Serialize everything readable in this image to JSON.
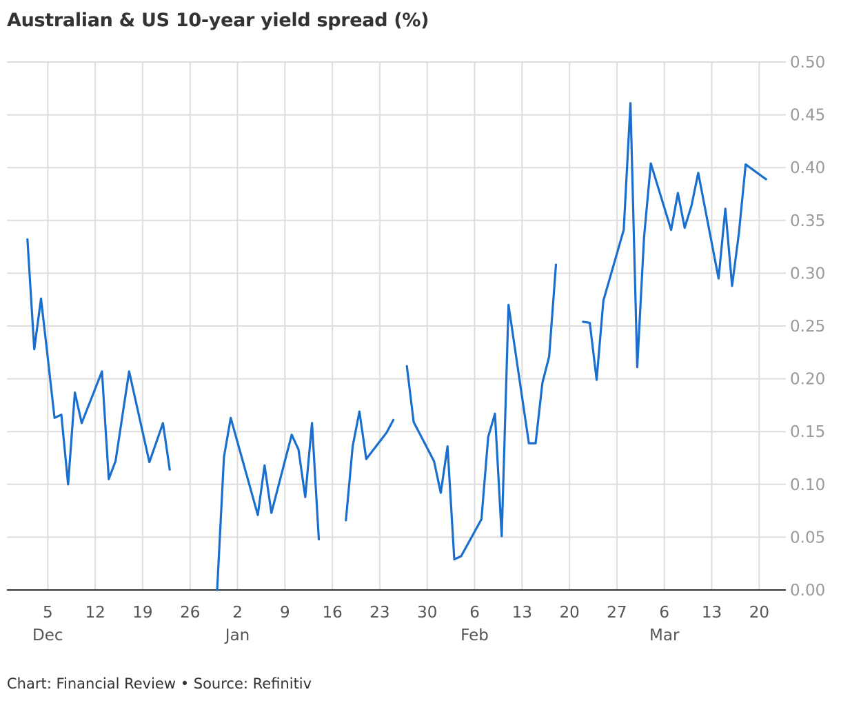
{
  "title": "Australian & US 10-year yield spread (%)",
  "footer": "Chart: Financial Review • Source: Refinitiv",
  "colors": {
    "line": "#1a6fce",
    "grid": "#dddddd",
    "axis": "#333333",
    "background": "#ffffff"
  },
  "chart_data": {
    "type": "line",
    "title": "Australian & US 10-year yield spread (%)",
    "xlabel": "",
    "ylabel": "",
    "ylim": [
      0,
      0.5
    ],
    "y_ticks": [
      "0.00",
      "0.05",
      "0.10",
      "0.15",
      "0.20",
      "0.25",
      "0.30",
      "0.35",
      "0.40",
      "0.45",
      "0.50"
    ],
    "x_range": [
      "2022-12-01",
      "2023-03-22"
    ],
    "x_ticks": [
      {
        "date": "2022-12-05",
        "label": "5",
        "month": "Dec"
      },
      {
        "date": "2022-12-12",
        "label": "12",
        "month": ""
      },
      {
        "date": "2022-12-19",
        "label": "19",
        "month": ""
      },
      {
        "date": "2022-12-26",
        "label": "26",
        "month": ""
      },
      {
        "date": "2023-01-02",
        "label": "2",
        "month": "Jan"
      },
      {
        "date": "2023-01-09",
        "label": "9",
        "month": ""
      },
      {
        "date": "2023-01-16",
        "label": "16",
        "month": ""
      },
      {
        "date": "2023-01-23",
        "label": "23",
        "month": ""
      },
      {
        "date": "2023-01-30",
        "label": "30",
        "month": ""
      },
      {
        "date": "2023-02-06",
        "label": "6",
        "month": "Feb"
      },
      {
        "date": "2023-02-13",
        "label": "13",
        "month": ""
      },
      {
        "date": "2023-02-20",
        "label": "20",
        "month": ""
      },
      {
        "date": "2023-02-27",
        "label": "27",
        "month": ""
      },
      {
        "date": "2023-03-06",
        "label": "6",
        "month": "Mar"
      },
      {
        "date": "2023-03-13",
        "label": "13",
        "month": ""
      },
      {
        "date": "2023-03-20",
        "label": "20",
        "month": ""
      }
    ],
    "grid": true,
    "legend": "none",
    "series": [
      {
        "segments": [
          [
            [
              "2022-12-02",
              0.332
            ],
            [
              "2022-12-03",
              0.228
            ],
            [
              "2022-12-04",
              0.276
            ],
            [
              "2022-12-05",
              0.22
            ],
            [
              "2022-12-06",
              0.163
            ],
            [
              "2022-12-07",
              0.166
            ],
            [
              "2022-12-08",
              0.1
            ],
            [
              "2022-12-09",
              0.187
            ],
            [
              "2022-12-10",
              0.158
            ],
            [
              "2022-12-13",
              0.207
            ],
            [
              "2022-12-14",
              0.105
            ],
            [
              "2022-12-15",
              0.122
            ],
            [
              "2022-12-17",
              0.207
            ],
            [
              "2022-12-20",
              0.121
            ],
            [
              "2022-12-22",
              0.158
            ],
            [
              "2022-12-23",
              0.114
            ]
          ],
          [
            [
              "2022-12-30",
              0.0
            ],
            [
              "2022-12-31",
              0.126
            ],
            [
              "2023-01-01",
              0.163
            ],
            [
              "2023-01-05",
              0.071
            ],
            [
              "2023-01-06",
              0.118
            ],
            [
              "2023-01-07",
              0.073
            ],
            [
              "2023-01-10",
              0.147
            ],
            [
              "2023-01-11",
              0.133
            ],
            [
              "2023-01-12",
              0.088
            ],
            [
              "2023-01-13",
              0.158
            ],
            [
              "2023-01-14",
              0.048
            ]
          ],
          [
            [
              "2023-01-18",
              0.066
            ],
            [
              "2023-01-19",
              0.136
            ],
            [
              "2023-01-20",
              0.169
            ],
            [
              "2023-01-21",
              0.124
            ],
            [
              "2023-01-24",
              0.149
            ],
            [
              "2023-01-25",
              0.161
            ]
          ],
          [
            [
              "2023-01-27",
              0.212
            ],
            [
              "2023-01-28",
              0.159
            ],
            [
              "2023-01-31",
              0.122
            ],
            [
              "2023-02-01",
              0.092
            ],
            [
              "2023-02-02",
              0.136
            ],
            [
              "2023-02-03",
              0.029
            ],
            [
              "2023-02-04",
              0.032
            ],
            [
              "2023-02-07",
              0.067
            ],
            [
              "2023-02-08",
              0.145
            ],
            [
              "2023-02-09",
              0.167
            ],
            [
              "2023-02-10",
              0.051
            ],
            [
              "2023-02-11",
              0.27
            ],
            [
              "2023-02-14",
              0.139
            ],
            [
              "2023-02-15",
              0.139
            ],
            [
              "2023-02-16",
              0.196
            ],
            [
              "2023-02-17",
              0.221
            ],
            [
              "2023-02-18",
              0.308
            ]
          ],
          [
            [
              "2023-02-22",
              0.254
            ],
            [
              "2023-02-23",
              0.253
            ],
            [
              "2023-02-24",
              0.199
            ],
            [
              "2023-02-25",
              0.274
            ],
            [
              "2023-02-28",
              0.341
            ],
            [
              "2023-03-01",
              0.461
            ],
            [
              "2023-03-02",
              0.211
            ],
            [
              "2023-03-03",
              0.334
            ],
            [
              "2023-03-04",
              0.404
            ],
            [
              "2023-03-07",
              0.341
            ],
            [
              "2023-03-08",
              0.376
            ],
            [
              "2023-03-09",
              0.343
            ],
            [
              "2023-03-10",
              0.364
            ],
            [
              "2023-03-11",
              0.395
            ],
            [
              "2023-03-14",
              0.295
            ],
            [
              "2023-03-15",
              0.361
            ],
            [
              "2023-03-16",
              0.288
            ],
            [
              "2023-03-17",
              0.338
            ],
            [
              "2023-03-18",
              0.403
            ],
            [
              "2023-03-21",
              0.389
            ]
          ]
        ]
      }
    ]
  }
}
